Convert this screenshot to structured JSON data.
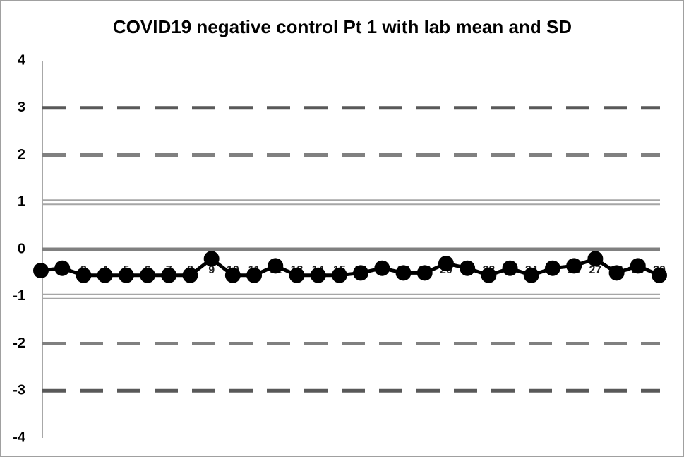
{
  "chart_data": {
    "type": "line",
    "title": "COVID19 negative control Pt 1 with lab mean and SD",
    "categories": [
      1,
      2,
      3,
      4,
      5,
      6,
      7,
      8,
      9,
      10,
      11,
      12,
      13,
      14,
      15,
      16,
      17,
      18,
      19,
      20,
      21,
      22,
      23,
      24,
      25,
      26,
      27,
      28,
      29,
      30
    ],
    "series": [
      {
        "color": "#000000",
        "values": [
          -0.45,
          -0.4,
          -0.55,
          -0.55,
          -0.55,
          -0.55,
          -0.55,
          -0.55,
          -0.2,
          -0.55,
          -0.55,
          -0.35,
          -0.55,
          -0.55,
          -0.55,
          -0.5,
          -0.4,
          -0.5,
          -0.5,
          -0.3,
          -0.4,
          -0.55,
          -0.4,
          -0.55,
          -0.4,
          -0.35,
          -0.2,
          -0.5,
          -0.35,
          -0.55
        ]
      }
    ],
    "reference_lines": [
      {
        "value": 3,
        "color": "#595959",
        "style": "dashed"
      },
      {
        "value": 2,
        "color": "#808080",
        "style": "dashed"
      },
      {
        "value": 1,
        "color": "#a6a6a6",
        "style": "double"
      },
      {
        "value": 0,
        "color": "#808080",
        "style": "solid"
      },
      {
        "value": -1,
        "color": "#a6a6a6",
        "style": "double"
      },
      {
        "value": -2,
        "color": "#808080",
        "style": "dashed"
      },
      {
        "value": -3,
        "color": "#595959",
        "style": "dashed"
      }
    ],
    "ylim": [
      -4,
      4
    ],
    "yticks": [
      -4,
      -3,
      -2,
      -1,
      0,
      1,
      2,
      3,
      4
    ]
  }
}
